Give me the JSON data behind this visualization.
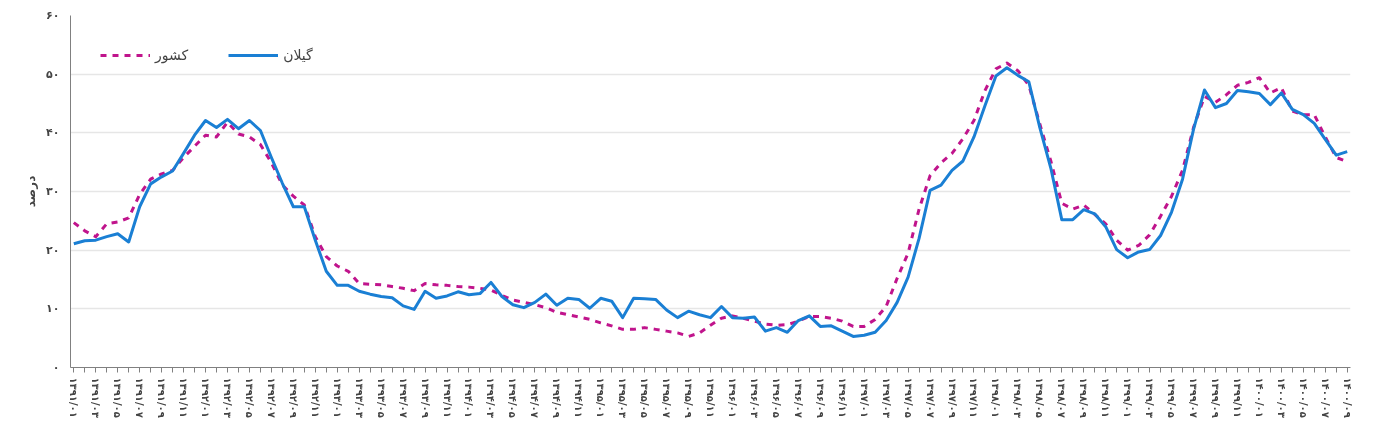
{
  "chart_data": {
    "type": "line",
    "ylabel": "درصد",
    "categories": [
      "۱۳۹۱/۰۱",
      null,
      "۱۳۹۱/۰۳",
      null,
      "۱۳۹۱/۰۵",
      null,
      "۱۳۹۱/۰۷",
      null,
      "۱۳۹۱/۰۹",
      null,
      "۱۳۹۱/۱۱",
      null,
      "۱۳۹۲/۰۱",
      null,
      "۱۳۹۲/۰۳",
      null,
      "۱۳۹۲/۰۵",
      null,
      "۱۳۹۲/۰۷",
      null,
      "۱۳۹۲/۰۹",
      null,
      "۱۳۹۲/۱۱",
      null,
      "۱۳۹۳/۰۱",
      null,
      "۱۳۹۳/۰۳",
      null,
      "۱۳۹۳/۰۵",
      null,
      "۱۳۹۳/۰۷",
      null,
      "۱۳۹۳/۰۹",
      null,
      "۱۳۹۳/۱۱",
      null,
      "۱۳۹۴/۰۱",
      null,
      "۱۳۹۴/۰۳",
      null,
      "۱۳۹۴/۰۵",
      null,
      "۱۳۹۴/۰۷",
      null,
      "۱۳۹۴/۰۹",
      null,
      "۱۳۹۴/۱۱",
      null,
      "۱۳۹۵/۰۱",
      null,
      "۱۳۹۵/۰۳",
      null,
      "۱۳۹۵/۰۵",
      null,
      "۱۳۹۵/۰۷",
      null,
      "۱۳۹۵/۰۹",
      null,
      "۱۳۹۵/۱۱",
      null,
      "۱۳۹۶/۰۱",
      null,
      "۱۳۹۶/۰۳",
      null,
      "۱۳۹۶/۰۵",
      null,
      "۱۳۹۶/۰۷",
      null,
      "۱۳۹۶/۰۹",
      null,
      "۱۳۹۶/۱۱",
      null,
      "۱۳۹۷/۰۱",
      null,
      "۱۳۹۷/۰۳",
      null,
      "۱۳۹۷/۰۵",
      null,
      "۱۳۹۷/۰۷",
      null,
      "۱۳۹۷/۰۹",
      null,
      "۱۳۹۷/۱۱",
      null,
      "۱۳۹۸/۰۱",
      null,
      "۱۳۹۸/۰۳",
      null,
      "۱۳۹۸/۰۵",
      null,
      "۱۳۹۸/۰۷",
      null,
      "۱۳۹۸/۰۹",
      null,
      "۱۳۹۸/۱۱",
      null,
      "۱۳۹۹/۰۱",
      null,
      "۱۳۹۹/۰۳",
      null,
      "۱۳۹۹/۰۵",
      null,
      "۱۳۹۹/۰۷",
      null,
      "۱۳۹۹/۰۹",
      null,
      "۱۳۹۹/۱۱",
      null,
      "۱۴۰۰/۰۱",
      null,
      "۱۴۰۰/۰۳",
      null,
      "۱۴۰۰/۰۵",
      null,
      "۱۴۰۰/۰۷",
      null,
      "۱۴۰۰/۰۹"
    ],
    "series": [
      {
        "name": "کشور",
        "color": "#c0148c",
        "line_style": "dashed",
        "values": [
          24.7,
          23.3,
          22.3,
          24.5,
          24.8,
          25.5,
          29.5,
          32.1,
          33.0,
          33.6,
          35.8,
          37.7,
          39.6,
          39.3,
          41.8,
          39.8,
          39.3,
          38.0,
          34.9,
          31.1,
          29.2,
          27.7,
          22.3,
          18.9,
          17.3,
          16.4,
          14.3,
          14.2,
          14.1,
          13.8,
          13.5,
          13.1,
          14.3,
          14.1,
          14.0,
          13.8,
          13.7,
          13.5,
          13.2,
          12.3,
          11.5,
          11.1,
          10.7,
          10.2,
          9.4,
          9.0,
          8.6,
          8.2,
          7.6,
          7.1,
          6.5,
          6.5,
          6.8,
          6.5,
          6.2,
          5.9,
          5.3,
          5.9,
          7.2,
          8.4,
          8.8,
          8.4,
          7.9,
          7.4,
          7.2,
          7.3,
          7.9,
          8.7,
          8.7,
          8.4,
          7.9,
          7.0,
          7.0,
          8.2,
          10.4,
          15.2,
          19.5,
          27.0,
          32.7,
          34.9,
          36.5,
          39.0,
          42.1,
          47.2,
          50.9,
          51.9,
          50.6,
          48.1,
          41.5,
          35.2,
          28.0,
          27.0,
          27.7,
          26.1,
          24.5,
          21.7,
          20.0,
          20.8,
          22.6,
          25.8,
          29.2,
          33.6,
          40.9,
          46.2,
          45.2,
          46.5,
          48.1,
          48.6,
          49.4,
          46.8,
          47.7,
          43.7,
          43.1,
          43.1,
          39.3,
          35.8,
          35.1
        ]
      },
      {
        "name": "گیلان",
        "color": "#1a7fd4",
        "line_style": "solid",
        "values": [
          21.1,
          21.6,
          21.7,
          22.3,
          22.8,
          21.4,
          27.4,
          31.3,
          32.5,
          33.5,
          36.5,
          39.6,
          42.1,
          40.9,
          42.3,
          40.7,
          42.1,
          40.4,
          35.8,
          31.4,
          27.4,
          27.4,
          21.7,
          16.4,
          14.0,
          14.0,
          13.0,
          12.5,
          12.1,
          11.9,
          10.5,
          9.9,
          13.0,
          11.8,
          12.2,
          12.9,
          12.4,
          12.6,
          14.5,
          12.1,
          10.7,
          10.2,
          11.1,
          12.5,
          10.6,
          11.8,
          11.6,
          10.1,
          11.8,
          11.3,
          8.5,
          11.8,
          11.7,
          11.6,
          9.8,
          8.5,
          9.6,
          9.0,
          8.5,
          10.4,
          8.5,
          8.4,
          8.6,
          6.2,
          6.8,
          6.0,
          8.0,
          8.8,
          7.0,
          7.1,
          6.2,
          5.3,
          5.5,
          6.0,
          8.0,
          11.1,
          15.4,
          22.0,
          30.2,
          31.1,
          33.6,
          35.2,
          39.3,
          44.6,
          49.7,
          51.1,
          49.8,
          48.7,
          40.9,
          34.0,
          25.2,
          25.2,
          26.9,
          26.2,
          24.0,
          20.1,
          18.7,
          19.7,
          20.1,
          22.5,
          26.5,
          32.1,
          40.6,
          47.3,
          44.3,
          45.0,
          47.2,
          47.0,
          46.7,
          44.8,
          46.8,
          44.0,
          43.1,
          41.6,
          38.9,
          36.2,
          36.8
        ]
      }
    ],
    "ylim": [
      0,
      60
    ],
    "yticks": [
      {
        "value": 0,
        "label": "۰"
      },
      {
        "value": 10,
        "label": "۱۰"
      },
      {
        "value": 20,
        "label": "۲۰"
      },
      {
        "value": 30,
        "label": "۳۰"
      },
      {
        "value": 40,
        "label": "۴۰"
      },
      {
        "value": 50,
        "label": "۵۰"
      },
      {
        "value": 60,
        "label": "۶۰"
      }
    ],
    "grid": "y",
    "legend": "top left",
    "marker": "none"
  }
}
